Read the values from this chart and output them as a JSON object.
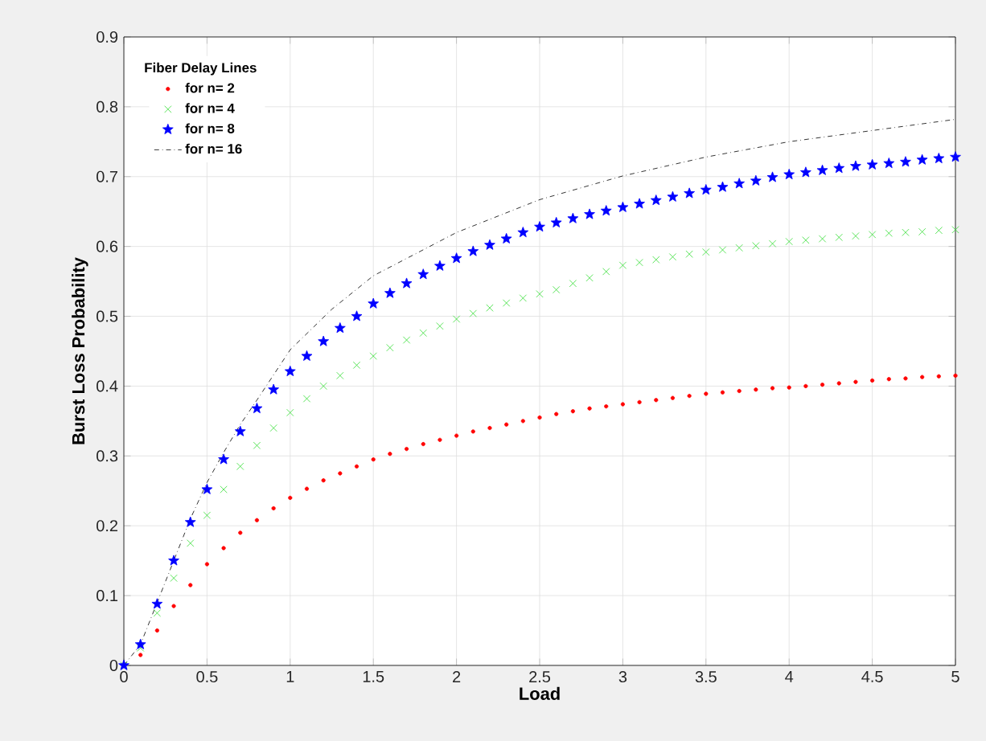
{
  "chart_data": {
    "type": "scatter",
    "xlabel": "Load",
    "ylabel": "Burst Loss Probability",
    "legend_title": "Fiber Delay Lines",
    "x": [
      0,
      0.1,
      0.2,
      0.3,
      0.4,
      0.5,
      0.6,
      0.7,
      0.8,
      0.9,
      1.0,
      1.1,
      1.2,
      1.3,
      1.4,
      1.5,
      1.6,
      1.7,
      1.8,
      1.9,
      2.0,
      2.1,
      2.2,
      2.3,
      2.4,
      2.5,
      2.6,
      2.7,
      2.8,
      2.9,
      3.0,
      3.1,
      3.2,
      3.3,
      3.4,
      3.5,
      3.6,
      3.7,
      3.8,
      3.9,
      4.0,
      4.1,
      4.2,
      4.3,
      4.4,
      4.5,
      4.6,
      4.7,
      4.8,
      4.9,
      5.0
    ],
    "series": [
      {
        "name": "for n= 2",
        "color": "#ff0000",
        "marker": "circle",
        "values": [
          0,
          0.015,
          0.05,
          0.085,
          0.115,
          0.145,
          0.168,
          0.19,
          0.208,
          0.225,
          0.24,
          0.253,
          0.265,
          0.275,
          0.285,
          0.295,
          0.303,
          0.31,
          0.317,
          0.323,
          0.329,
          0.335,
          0.34,
          0.345,
          0.35,
          0.355,
          0.36,
          0.364,
          0.368,
          0.371,
          0.374,
          0.377,
          0.38,
          0.383,
          0.386,
          0.389,
          0.391,
          0.393,
          0.395,
          0.397,
          0.398,
          0.4,
          0.402,
          0.404,
          0.406,
          0.408,
          0.41,
          0.411,
          0.413,
          0.414,
          0.415
        ]
      },
      {
        "name": "for n= 4",
        "color": "#33dd33",
        "marker": "cross",
        "values": [
          0,
          0.025,
          0.075,
          0.125,
          0.175,
          0.215,
          0.252,
          0.285,
          0.315,
          0.34,
          0.362,
          0.382,
          0.4,
          0.415,
          0.43,
          0.443,
          0.455,
          0.466,
          0.476,
          0.486,
          0.496,
          0.504,
          0.512,
          0.519,
          0.526,
          0.532,
          0.538,
          0.547,
          0.555,
          0.564,
          0.573,
          0.577,
          0.581,
          0.585,
          0.589,
          0.592,
          0.595,
          0.598,
          0.601,
          0.604,
          0.607,
          0.609,
          0.611,
          0.613,
          0.615,
          0.617,
          0.619,
          0.62,
          0.621,
          0.623,
          0.624
        ]
      },
      {
        "name": "for n= 8",
        "color": "#0000ff",
        "marker": "star",
        "values": [
          0,
          0.03,
          0.088,
          0.15,
          0.205,
          0.252,
          0.295,
          0.335,
          0.368,
          0.395,
          0.421,
          0.443,
          0.464,
          0.483,
          0.5,
          0.518,
          0.533,
          0.547,
          0.56,
          0.572,
          0.583,
          0.593,
          0.602,
          0.611,
          0.62,
          0.628,
          0.634,
          0.64,
          0.646,
          0.651,
          0.656,
          0.661,
          0.666,
          0.671,
          0.676,
          0.681,
          0.685,
          0.69,
          0.694,
          0.699,
          0.703,
          0.706,
          0.709,
          0.712,
          0.715,
          0.717,
          0.719,
          0.721,
          0.724,
          0.726,
          0.728
        ]
      },
      {
        "name": "for n= 16",
        "color": "#000000",
        "type": "line",
        "marker": "none",
        "line_style": "dashdot",
        "x": [
          0,
          0.1,
          0.2,
          0.3,
          0.4,
          0.5,
          0.6,
          0.7,
          0.8,
          1.0,
          1.25,
          1.5,
          2.0,
          2.5,
          3.0,
          3.5,
          4.0,
          4.5,
          5.0
        ],
        "values": [
          0,
          0.03,
          0.09,
          0.15,
          0.21,
          0.262,
          0.305,
          0.345,
          0.38,
          0.452,
          0.51,
          0.558,
          0.62,
          0.667,
          0.701,
          0.728,
          0.75,
          0.766,
          0.782
        ]
      }
    ],
    "xlim": [
      0,
      5
    ],
    "ylim": [
      0,
      0.9
    ],
    "xticks": [
      0,
      0.5,
      1,
      1.5,
      2,
      2.5,
      3,
      3.5,
      4,
      4.5,
      5
    ],
    "yticks": [
      0,
      0.1,
      0.2,
      0.3,
      0.4,
      0.5,
      0.6,
      0.7,
      0.8,
      0.9
    ],
    "grid": true,
    "legend": "top left"
  }
}
